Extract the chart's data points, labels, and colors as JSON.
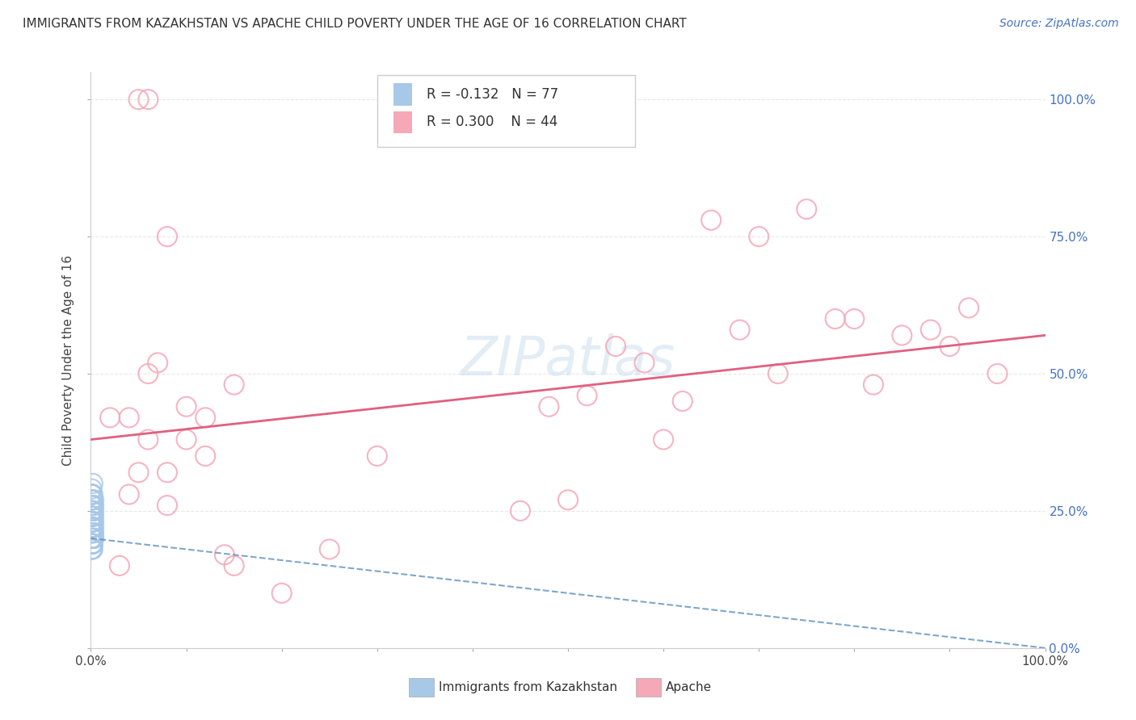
{
  "title": "IMMIGRANTS FROM KAZAKHSTAN VS APACHE CHILD POVERTY UNDER THE AGE OF 16 CORRELATION CHART",
  "source": "Source: ZipAtlas.com",
  "ylabel": "Child Poverty Under the Age of 16",
  "legend_label1": "Immigrants from Kazakhstan",
  "legend_label2": "Apache",
  "R1": -0.132,
  "N1": 77,
  "R2": 0.3,
  "N2": 44,
  "color_blue": "#a8c8e8",
  "color_pink": "#f4a8b8",
  "line_color_blue": "#6090c0",
  "line_color_pink": "#e06080",
  "background_color": "#ffffff",
  "grid_color": "#e8e8e8",
  "watermark_color": "#ccdff0",
  "right_axis_color": "#4472c4",
  "blue_x": [
    0.001,
    0.002,
    0.001,
    0.002,
    0.003,
    0.001,
    0.002,
    0.001,
    0.002,
    0.001,
    0.002,
    0.001,
    0.003,
    0.002,
    0.001,
    0.002,
    0.001,
    0.003,
    0.002,
    0.001,
    0.002,
    0.001,
    0.002,
    0.001,
    0.002,
    0.003,
    0.001,
    0.002,
    0.001,
    0.002,
    0.001,
    0.002,
    0.001,
    0.003,
    0.002,
    0.001,
    0.002,
    0.001,
    0.002,
    0.003,
    0.001,
    0.002,
    0.001,
    0.002,
    0.001,
    0.002,
    0.003,
    0.001,
    0.002,
    0.001,
    0.002,
    0.001,
    0.002,
    0.003,
    0.001,
    0.002,
    0.001,
    0.002,
    0.001,
    0.002,
    0.001,
    0.003,
    0.002,
    0.001,
    0.002,
    0.001,
    0.002,
    0.001,
    0.002,
    0.003,
    0.001,
    0.002,
    0.001,
    0.002,
    0.001,
    0.002,
    0.001
  ],
  "blue_y": [
    0.28,
    0.3,
    0.25,
    0.22,
    0.27,
    0.2,
    0.24,
    0.18,
    0.26,
    0.23,
    0.21,
    0.29,
    0.25,
    0.22,
    0.19,
    0.24,
    0.27,
    0.21,
    0.23,
    0.26,
    0.2,
    0.28,
    0.22,
    0.25,
    0.19,
    0.23,
    0.27,
    0.21,
    0.24,
    0.26,
    0.18,
    0.22,
    0.25,
    0.2,
    0.28,
    0.23,
    0.21,
    0.26,
    0.19,
    0.24,
    0.27,
    0.2,
    0.23,
    0.25,
    0.22,
    0.18,
    0.26,
    0.24,
    0.21,
    0.28,
    0.23,
    0.2,
    0.25,
    0.22,
    0.27,
    0.19,
    0.24,
    0.21,
    0.26,
    0.23,
    0.28,
    0.2,
    0.25,
    0.22,
    0.19,
    0.27,
    0.23,
    0.21,
    0.25,
    0.2,
    0.24,
    0.22,
    0.26,
    0.19,
    0.28,
    0.23,
    0.21
  ],
  "pink_x": [
    0.02,
    0.04,
    0.05,
    0.06,
    0.07,
    0.08,
    0.08,
    0.1,
    0.12,
    0.14,
    0.15,
    0.05,
    0.06,
    0.2,
    0.25,
    0.12,
    0.1,
    0.08,
    0.06,
    0.04,
    0.03,
    0.65,
    0.7,
    0.75,
    0.8,
    0.85,
    0.88,
    0.9,
    0.92,
    0.95,
    0.68,
    0.72,
    0.78,
    0.82,
    0.45,
    0.5,
    0.55,
    0.6,
    0.48,
    0.52,
    0.58,
    0.62,
    0.3,
    0.15
  ],
  "pink_y": [
    0.42,
    0.28,
    0.32,
    0.5,
    0.52,
    0.75,
    0.32,
    0.38,
    0.35,
    0.17,
    0.48,
    1.0,
    1.0,
    0.1,
    0.18,
    0.42,
    0.44,
    0.26,
    0.38,
    0.42,
    0.15,
    0.78,
    0.75,
    0.8,
    0.6,
    0.57,
    0.58,
    0.55,
    0.62,
    0.5,
    0.58,
    0.5,
    0.6,
    0.48,
    0.25,
    0.27,
    0.55,
    0.38,
    0.44,
    0.46,
    0.52,
    0.45,
    0.35,
    0.15
  ],
  "pink_line_y0": 0.38,
  "pink_line_y1": 0.57,
  "blue_line_y0": 0.2,
  "blue_line_y1": 0.0,
  "xlim": [
    0.0,
    1.0
  ],
  "ylim": [
    0.0,
    1.05
  ],
  "y_ticks": [
    0.0,
    0.25,
    0.5,
    0.75,
    1.0
  ],
  "x_ticks_minor": [
    0.0,
    0.1,
    0.2,
    0.3,
    0.4,
    0.5,
    0.6,
    0.7,
    0.8,
    0.9,
    1.0
  ]
}
